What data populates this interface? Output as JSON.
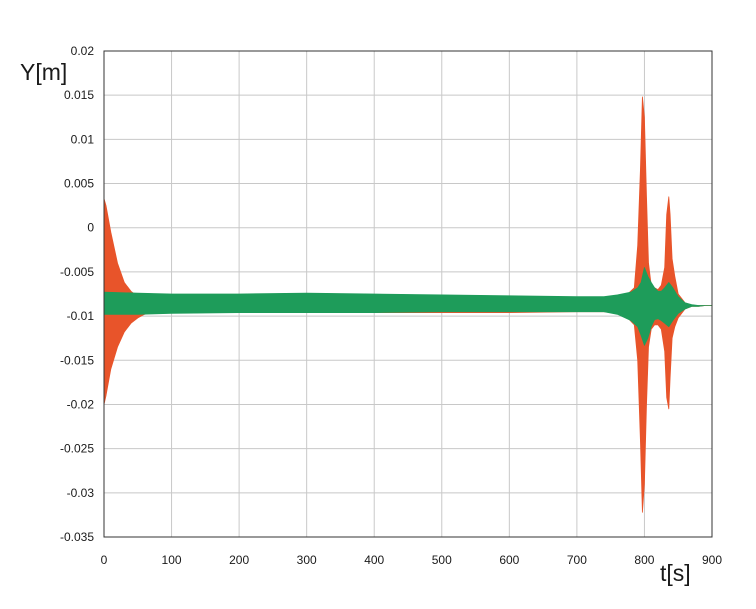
{
  "chart_data": {
    "type": "area",
    "title": "",
    "xlabel": "t[s]",
    "ylabel": "Y[m]",
    "xlim": [
      0,
      900
    ],
    "ylim": [
      -0.035,
      0.02
    ],
    "x_ticks": [
      "0",
      "100",
      "200",
      "300",
      "400",
      "500",
      "600",
      "700",
      "800",
      "900"
    ],
    "y_ticks": [
      "0.02",
      "0.015",
      "0.01",
      "0.005",
      "0",
      "-0.005",
      "-0.01",
      "-0.015",
      "-0.02",
      "-0.025",
      "-0.03",
      "-0.035"
    ],
    "grid": true,
    "legend": "none",
    "series": [
      {
        "color": "#e8542a",
        "x": [
          0,
          3,
          10,
          20,
          30,
          40,
          50,
          60,
          70,
          100,
          200,
          300,
          400,
          500,
          600,
          700,
          740,
          760,
          775,
          785,
          790,
          794,
          797,
          800,
          803,
          806,
          810,
          815,
          820,
          825,
          830,
          833,
          836,
          838,
          841,
          845,
          850,
          860,
          870,
          880,
          890,
          900
        ],
        "upper": [
          0.0033,
          0.0025,
          -0.0005,
          -0.004,
          -0.0062,
          -0.0072,
          -0.0078,
          -0.0081,
          -0.0083,
          -0.0084,
          -0.0084,
          -0.0084,
          -0.0085,
          -0.0085,
          -0.0085,
          -0.0084,
          -0.0083,
          -0.008,
          -0.0075,
          -0.0068,
          -0.002,
          0.0065,
          0.0148,
          0.0125,
          0.0035,
          -0.004,
          -0.0065,
          -0.0068,
          -0.007,
          -0.0065,
          -0.0045,
          0.0015,
          0.0035,
          0.0015,
          -0.0035,
          -0.0055,
          -0.0075,
          -0.0085,
          -0.0088,
          -0.0088,
          -0.0088,
          -0.0088
        ],
        "lower": [
          -0.02,
          -0.019,
          -0.016,
          -0.0135,
          -0.0118,
          -0.0108,
          -0.0102,
          -0.0098,
          -0.0096,
          -0.0096,
          -0.0096,
          -0.0096,
          -0.0096,
          -0.0096,
          -0.0096,
          -0.0095,
          -0.0095,
          -0.0097,
          -0.0102,
          -0.011,
          -0.015,
          -0.024,
          -0.0322,
          -0.029,
          -0.02,
          -0.0135,
          -0.0115,
          -0.011,
          -0.011,
          -0.0115,
          -0.014,
          -0.0192,
          -0.0205,
          -0.017,
          -0.0125,
          -0.0112,
          -0.0102,
          -0.0092,
          -0.0089,
          -0.0089,
          -0.0088,
          -0.0088
        ]
      },
      {
        "color": "#1e9c5a",
        "x": [
          0,
          50,
          100,
          200,
          300,
          400,
          500,
          600,
          700,
          740,
          760,
          780,
          790,
          795,
          800,
          805,
          810,
          815,
          820,
          825,
          830,
          836,
          842,
          850,
          860,
          870,
          880,
          890,
          900
        ],
        "upper": [
          -0.0073,
          -0.0074,
          -0.0075,
          -0.0075,
          -0.0074,
          -0.0075,
          -0.0076,
          -0.0077,
          -0.0078,
          -0.0078,
          -0.0076,
          -0.0073,
          -0.0068,
          -0.0062,
          -0.0045,
          -0.0055,
          -0.0062,
          -0.0068,
          -0.0072,
          -0.0072,
          -0.0068,
          -0.0062,
          -0.0068,
          -0.0078,
          -0.0085,
          -0.0087,
          -0.0088,
          -0.0088,
          -0.0088
        ],
        "lower": [
          -0.0098,
          -0.0098,
          -0.0097,
          -0.0096,
          -0.0096,
          -0.0096,
          -0.0095,
          -0.0095,
          -0.0095,
          -0.0095,
          -0.0098,
          -0.0105,
          -0.0112,
          -0.0122,
          -0.0133,
          -0.0125,
          -0.0112,
          -0.0104,
          -0.0103,
          -0.0105,
          -0.0108,
          -0.0112,
          -0.0105,
          -0.0097,
          -0.0092,
          -0.0089,
          -0.0089,
          -0.0088,
          -0.0088
        ]
      }
    ]
  }
}
